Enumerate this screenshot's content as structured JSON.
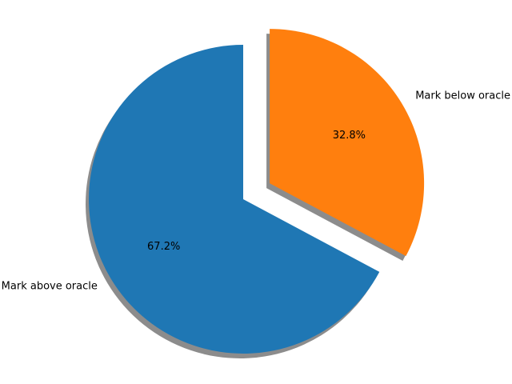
{
  "chart_data": {
    "type": "pie",
    "categories": [
      "Mark above oracle",
      "Mark below oracle"
    ],
    "values": [
      67.2,
      32.8
    ],
    "value_labels": [
      "67.2%",
      "32.8%"
    ],
    "colors": [
      "#1f77b4",
      "#ff7f0e"
    ],
    "exploded": [
      false,
      true
    ],
    "shadow": true,
    "start_angle_deg": 90,
    "direction": "counterclockwise",
    "title": "",
    "legend": "none"
  }
}
